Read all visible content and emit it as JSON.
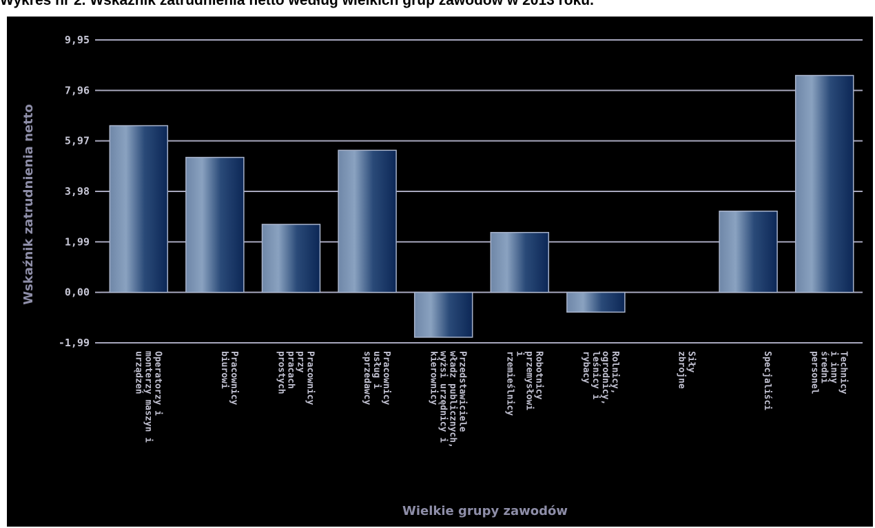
{
  "title": "Wykres nr 2. Wskaźnik zatrudnienia netto według wielkich grup zawodów w 2013 roku.",
  "chart_data": {
    "type": "bar",
    "xlabel": "Wielkie grupy zawodów",
    "ylabel": "Wskaźnik zatrudnienia netto",
    "ylim": [
      -1.99,
      9.95
    ],
    "yticks": [
      "9,95",
      "7,96",
      "5,97",
      "3,98",
      "1,99",
      "0,00",
      "-1,99"
    ],
    "ytick_values": [
      9.95,
      7.96,
      5.97,
      3.98,
      1.99,
      0.0,
      -1.99
    ],
    "grid": true,
    "categories": [
      [
        "Operatorzy i",
        "monterzy maszyn i",
        "urządzeń"
      ],
      [
        "Pracownicy",
        "biurowi"
      ],
      [
        "Pracownicy",
        "przy",
        "pracach",
        "prostych"
      ],
      [
        "Pracownicy",
        "usług i",
        "sprzedawcy"
      ],
      [
        "Przedstawiciele",
        "władz publicznych,",
        "wyżsi urzędnicy i",
        "kierownicy"
      ],
      [
        "Robotnicy",
        "przemysłowi",
        "i",
        "rzemieślnicy"
      ],
      [
        "Rolnicy,",
        "ogrodnicy,",
        "leśnicy i",
        "rybacy"
      ],
      [
        "Siły",
        "zbrojne"
      ],
      [
        "Specjaliści"
      ],
      [
        "Technicy",
        "i inny",
        "średni",
        "personel"
      ]
    ],
    "values": [
      6.57,
      5.32,
      2.68,
      5.6,
      -1.77,
      2.36,
      -0.78,
      0.0,
      3.2,
      8.55
    ],
    "colors": {
      "bar_light": "#7c95b6",
      "bar_dark": "#0e2a57",
      "bar_stroke": "#a9b4cc",
      "grid": "#a8a8be",
      "background": "#000000"
    }
  }
}
